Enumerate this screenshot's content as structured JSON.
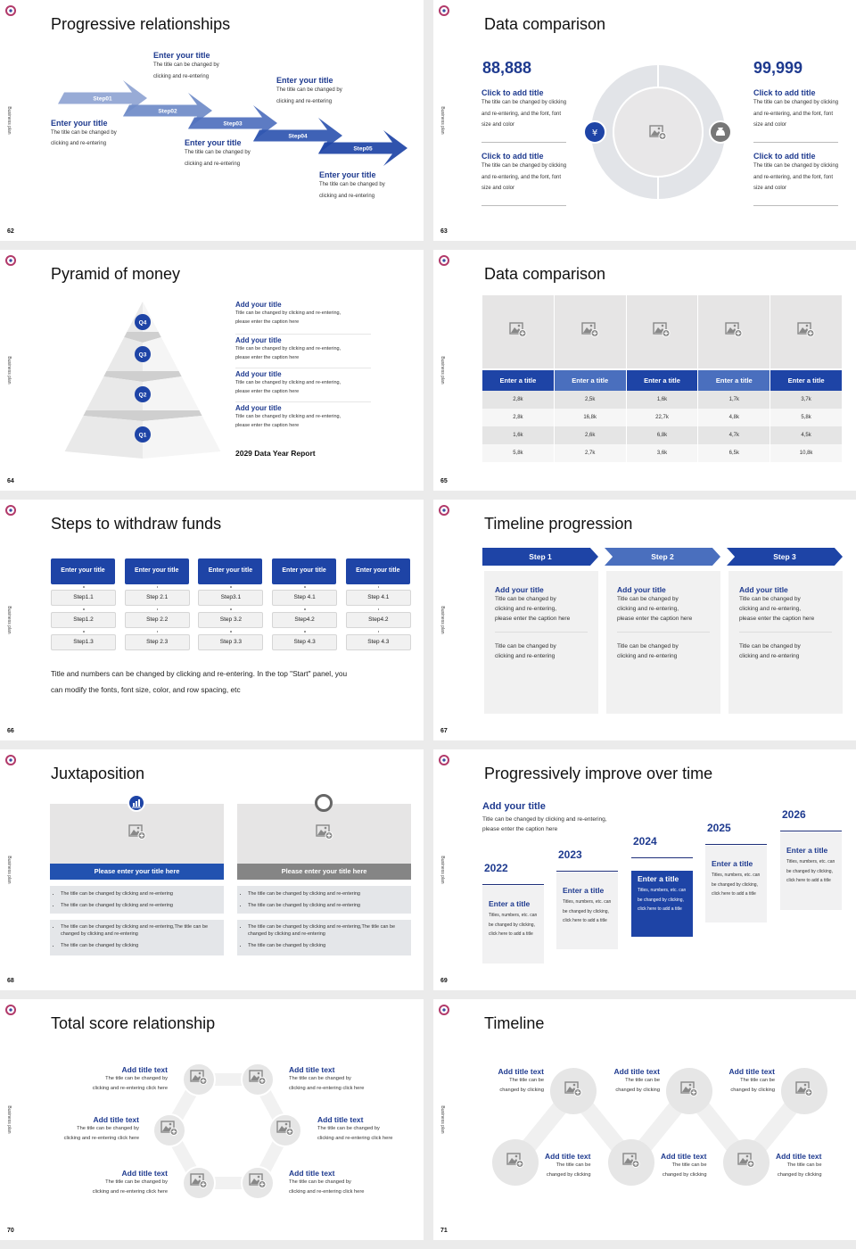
{
  "common": {
    "side_label": "Business plan",
    "accent": "#1e44a6",
    "dark_title": "#1e3a8f"
  },
  "s62": {
    "page": "62",
    "title": "Progressive relationships",
    "steps": [
      "Step01",
      "Step02",
      "Step03",
      "Step04",
      "Step05"
    ],
    "items": [
      {
        "t": "Enter your title",
        "d1": "The title can be changed by",
        "d2": "clicking and re-entering"
      },
      {
        "t": "Enter your title",
        "d1": "The title can be changed by",
        "d2": "clicking and re-entering"
      },
      {
        "t": "Enter your title",
        "d1": "The title can be changed by",
        "d2": "clicking and re-entering"
      },
      {
        "t": "Enter your title",
        "d1": "The title can be changed by",
        "d2": "clicking and re-entering"
      },
      {
        "t": "Enter your title",
        "d1": "The title can be changed by",
        "d2": "clicking and re-entering"
      }
    ]
  },
  "s63": {
    "page": "63",
    "title": "Data comparison",
    "left_value": "88,888",
    "right_value": "99,999",
    "left": [
      {
        "t": "Click to add title",
        "d": "The title can be changed by clicking and re-entering, and the font, font size and color"
      },
      {
        "t": "Click to add title",
        "d": "The title can be changed by clicking and re-entering, and the font, font size and color"
      }
    ],
    "right": [
      {
        "t": "Click to add title",
        "d": "The title can be changed by clicking and re-entering, and the font, font size and color"
      },
      {
        "t": "Click to add title",
        "d": "The title can be changed by clicking and re-entering, and the font, font size and color"
      }
    ],
    "icons": [
      "yen-hand-icon",
      "money-bag-icon"
    ]
  },
  "s64": {
    "page": "64",
    "title": "Pyramid of money",
    "levels": [
      "Q4",
      "Q3",
      "Q2",
      "Q1"
    ],
    "items": [
      {
        "t": "Add your title",
        "d1": "Title can be changed by clicking and re-entering,",
        "d2": "please enter the caption here"
      },
      {
        "t": "Add your title",
        "d1": "Title can be changed by clicking and re-entering,",
        "d2": "please enter the caption here"
      },
      {
        "t": "Add your title",
        "d1": "Title can be changed by clicking and re-entering,",
        "d2": "please enter the caption here"
      },
      {
        "t": "Add your title",
        "d1": "Title can be changed by clicking and re-entering,",
        "d2": "please enter the caption here"
      }
    ],
    "report": "2029 Data Year Report"
  },
  "s65": {
    "page": "65",
    "title": "Data comparison",
    "headers": [
      "Enter a title",
      "Enter a title",
      "Enter a title",
      "Enter a title",
      "Enter a title"
    ],
    "rows": [
      [
        "2,8k",
        "2,5k",
        "1,6k",
        "1,7k",
        "3,7k"
      ],
      [
        "2,8k",
        "16,8k",
        "22,7k",
        "4,8k",
        "5,8k"
      ],
      [
        "1,6k",
        "2,6k",
        "6,8k",
        "4,7k",
        "4,5k"
      ],
      [
        "5,8k",
        "2,7k",
        "3,6k",
        "6,5k",
        "10,8k"
      ]
    ]
  },
  "s66": {
    "page": "66",
    "title": "Steps to withdraw funds",
    "columns": [
      {
        "h": "Enter your title",
        "s": [
          "Step1.1",
          "Step1.2",
          "Step1.3"
        ]
      },
      {
        "h": "Enter your title",
        "s": [
          "Step 2.1",
          "Step 2.2",
          "Step 2.3"
        ]
      },
      {
        "h": "Enter your title",
        "s": [
          "Step3.1",
          "Step 3.2",
          "Step 3.3"
        ]
      },
      {
        "h": "Enter your title",
        "s": [
          "Step 4.1",
          "Step4.2",
          "Step 4.3"
        ]
      },
      {
        "h": "Enter your title",
        "s": [
          "Step 4.1",
          "Step4.2",
          "Step 4.3"
        ]
      }
    ],
    "note1": "Title and numbers can be changed by clicking and re-entering. In the top \"Start\" panel, you",
    "note2": "can modify the fonts, font size, color, and row spacing, etc"
  },
  "s67": {
    "page": "67",
    "title": "Timeline progression",
    "steps": [
      {
        "label": "Step 1",
        "t": "Add your title",
        "d1": "Title can be changed by",
        "d2": "clicking and re-entering,",
        "d3": "please enter the caption here",
        "e1": "Title can be changed by",
        "e2": "clicking and re-entering"
      },
      {
        "label": "Step 2",
        "t": "Add your title",
        "d1": "Title can be changed by",
        "d2": "clicking and re-entering,",
        "d3": "please enter the caption here",
        "e1": "Title can be changed by",
        "e2": "clicking and re-entering"
      },
      {
        "label": "Step 3",
        "t": "Add your title",
        "d1": "Title can be changed by",
        "d2": "clicking and re-entering,",
        "d3": "please enter the caption here",
        "e1": "Title can be changed by",
        "e2": "clicking and re-entering"
      }
    ]
  },
  "s68": {
    "page": "68",
    "title": "Juxtaposition",
    "panels": [
      {
        "icon": "bar-chart-icon",
        "h": "Please enter your title here",
        "b1": "The title can be changed by clicking and re-entering",
        "b2": "The title can be changed by clicking and re-entering",
        "b3": "The title can be changed by clicking and re-entering,The title can be changed by clicking and re-entering",
        "b4": "The title can be changed by clicking"
      },
      {
        "icon": "clock-icon",
        "h": "Please enter your title here",
        "b1": "The title can be changed by clicking and re-entering",
        "b2": "The title can be changed by clicking and re-entering",
        "b3": "The title can be changed by clicking and re-entering,The title can be changed by clicking and re-entering",
        "b4": "The title can be changed by clicking"
      }
    ]
  },
  "s69": {
    "page": "69",
    "title": "Progressively improve over time",
    "head": "Add your title",
    "caption": "Title can be changed by clicking and re-entering, please enter the caption here",
    "years": [
      {
        "y": "2022",
        "t": "Enter a title",
        "d": "Titles, numbers, etc. can be changed by clicking, click here to add a title"
      },
      {
        "y": "2023",
        "t": "Enter a title",
        "d": "Titles, numbers, etc. can be changed by clicking, click here to add a title"
      },
      {
        "y": "2024",
        "t": "Enter a title",
        "d": "Titles, numbers, etc. can be changed by clicking, click here to add a title"
      },
      {
        "y": "2025",
        "t": "Enter a title",
        "d": "Titles, numbers, etc. can be changed by clicking, click here to add a title"
      },
      {
        "y": "2026",
        "t": "Enter a title",
        "d": "Titles, numbers, etc. can be changed by clicking, click here to add a title"
      }
    ]
  },
  "s70": {
    "page": "70",
    "title": "Total score relationship",
    "items": [
      {
        "t": "Add title text",
        "d1": "The title can be changed by",
        "d2": "clicking and re-entering click here"
      },
      {
        "t": "Add title text",
        "d1": "The title can be changed by",
        "d2": "clicking and re-entering click here"
      },
      {
        "t": "Add title text",
        "d1": "The title can be changed by",
        "d2": "clicking and re-entering click here"
      },
      {
        "t": "Add title text",
        "d1": "The title can be changed by",
        "d2": "clicking and re-entering click here"
      },
      {
        "t": "Add title text",
        "d1": "The title can be changed by",
        "d2": "clicking and re-entering click here"
      },
      {
        "t": "Add title text",
        "d1": "The title can be changed by",
        "d2": "clicking and re-entering click here"
      }
    ]
  },
  "s71": {
    "page": "71",
    "title": "Timeline",
    "items": [
      {
        "t": "Add title text",
        "d1": "The title can be",
        "d2": "changed by clicking"
      },
      {
        "t": "Add title text",
        "d1": "The title can be",
        "d2": "changed by clicking"
      },
      {
        "t": "Add title text",
        "d1": "The title can be",
        "d2": "changed by clicking"
      },
      {
        "t": "Add title text",
        "d1": "The title can be",
        "d2": "changed by clicking"
      },
      {
        "t": "Add title text",
        "d1": "The title can be",
        "d2": "changed by clicking"
      },
      {
        "t": "Add title text",
        "d1": "The title can be",
        "d2": "changed by clicking"
      }
    ]
  }
}
